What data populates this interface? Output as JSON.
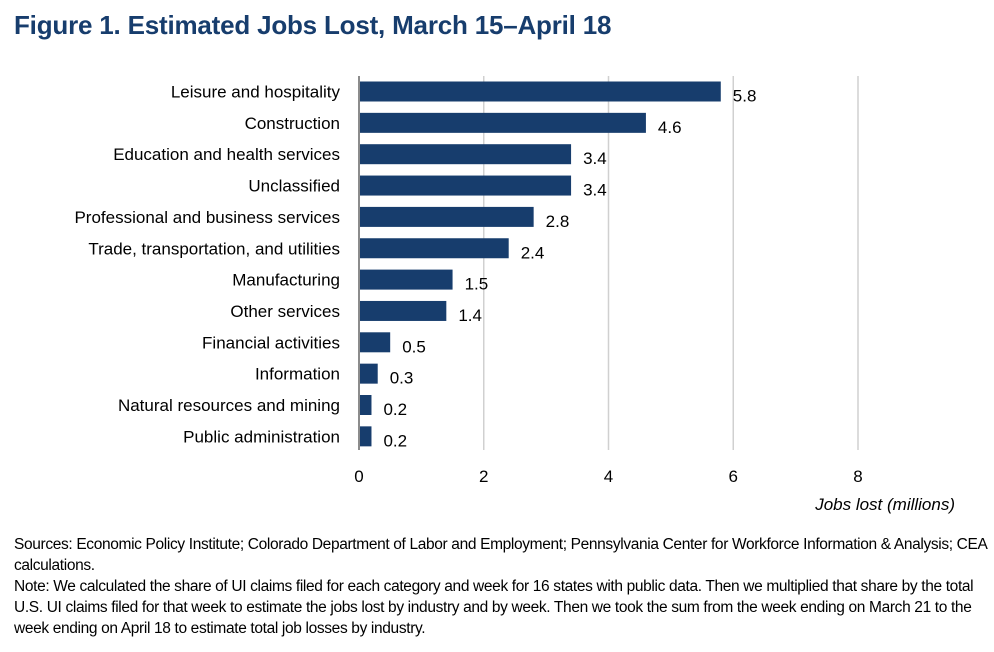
{
  "chart_data": {
    "type": "bar",
    "orientation": "horizontal",
    "title": "Figure 1. Estimated Jobs Lost, March 15–April 18",
    "categories": [
      "Leisure and hospitality",
      "Construction",
      "Education and health services",
      "Unclassified",
      "Professional and business services",
      "Trade, transportation, and utilities",
      "Manufacturing",
      "Other services",
      "Financial activities",
      "Information",
      "Natural resources and mining",
      "Public administration"
    ],
    "values": [
      5.8,
      4.6,
      3.4,
      3.4,
      2.8,
      2.4,
      1.5,
      1.4,
      0.5,
      0.3,
      0.2,
      0.2
    ],
    "data_labels": [
      "5.8",
      "4.6",
      "3.4",
      "3.4",
      "2.8",
      "2.4",
      "1.5",
      "1.4",
      "0.5",
      "0.3",
      "0.2",
      "0.2"
    ],
    "xlabel": "Jobs lost (millions)",
    "ylabel": "",
    "xlim": [
      0,
      8
    ],
    "xticks": [
      "0",
      "2",
      "4",
      "6",
      "8"
    ],
    "grid": true,
    "bar_color": "#173d6d",
    "title_color": "#173d6d"
  },
  "notes": {
    "sources": "Sources: Economic Policy Institute; Colorado Department of Labor and Employment; Pennsylvania Center for Workforce Information & Analysis; CEA calculations.",
    "note": "Note:  We calculated the share of UI claims filed for each category and week for 16 states with public data. Then we multiplied that share by the total U.S. UI claims filed for that week to estimate the jobs lost by industry and by week. Then we took the sum from the week ending on March 21 to the week ending on April 18 to estimate total job losses by industry."
  }
}
